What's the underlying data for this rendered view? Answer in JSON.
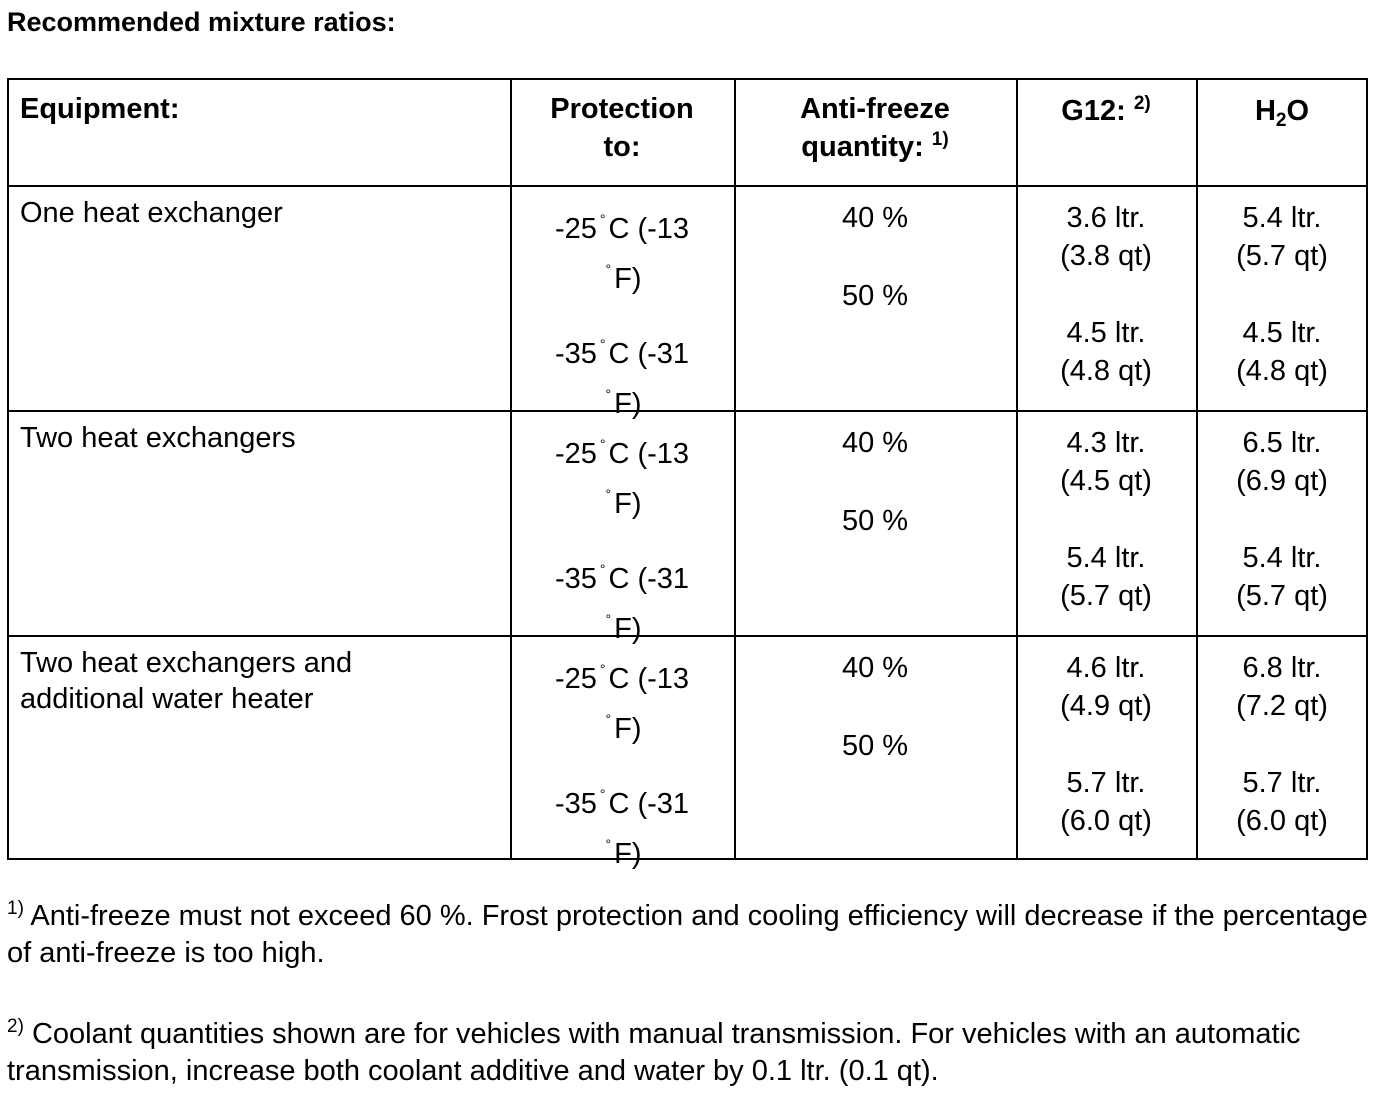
{
  "title": "Recommended mixture ratios:",
  "table": {
    "header": [
      {
        "text": "Equipment:"
      },
      {
        "text": "Protection to:"
      },
      {
        "text": "Anti-freeze quantity:",
        "note": "1)"
      },
      {
        "text": "G12:",
        "note": "2)"
      },
      {
        "parts": [
          "H",
          "2",
          "O"
        ]
      }
    ],
    "rows": [
      {
        "equipment": "One heat exchanger",
        "protection": [
          [
            "-25",
            "°",
            "C (-13",
            "°",
            "F)"
          ],
          [
            "-35",
            "°",
            "C (-31",
            "°",
            "F)"
          ]
        ],
        "antifreeze": [
          "40 %",
          "50 %"
        ],
        "g12": [
          [
            "3.6 ltr.",
            "(3.8 qt)"
          ],
          [
            "4.5 ltr.",
            "(4.8 qt)"
          ]
        ],
        "water": [
          [
            "5.4 ltr.",
            "(5.7 qt)"
          ],
          [
            "4.5 ltr.",
            "(4.8 qt)"
          ]
        ]
      },
      {
        "equipment": "Two heat exchangers",
        "protection": [
          [
            "-25",
            "°",
            "C (-13",
            "°",
            "F)"
          ],
          [
            "-35",
            "°",
            "C (-31",
            "°",
            "F)"
          ]
        ],
        "antifreeze": [
          "40 %",
          "50 %"
        ],
        "g12": [
          [
            "4.3 ltr.",
            "(4.5 qt)"
          ],
          [
            "5.4 ltr.",
            "(5.7 qt)"
          ]
        ],
        "water": [
          [
            "6.5 ltr.",
            "(6.9 qt)"
          ],
          [
            "5.4 ltr.",
            "(5.7 qt)"
          ]
        ]
      },
      {
        "equipment": "Two heat exchangers and additional water heater",
        "protection": [
          [
            "-25",
            "°",
            "C (-13",
            "°",
            "F)"
          ],
          [
            "-35",
            "°",
            "C (-31",
            "°",
            "F)"
          ]
        ],
        "antifreeze": [
          "40 %",
          "50 %"
        ],
        "g12": [
          [
            "4.6 ltr.",
            "(4.9 qt)"
          ],
          [
            "5.7 ltr.",
            "(6.0 qt)"
          ]
        ],
        "water": [
          [
            "6.8 ltr.",
            "(7.2 qt)"
          ],
          [
            "5.7 ltr.",
            "(6.0 qt)"
          ]
        ]
      }
    ]
  },
  "footnotes": [
    {
      "mark": "1)",
      "text": "Anti-freeze must not exceed 60 %. Frost protection and cooling efficiency will decrease if the percentage of anti-freeze is too high."
    },
    {
      "mark": "2)",
      "text": "Coolant quantities shown are for vehicles with manual transmission. For vehicles with an automatic transmission, increase both coolant additive and water by 0.1 ltr. (0.1 qt)."
    }
  ]
}
